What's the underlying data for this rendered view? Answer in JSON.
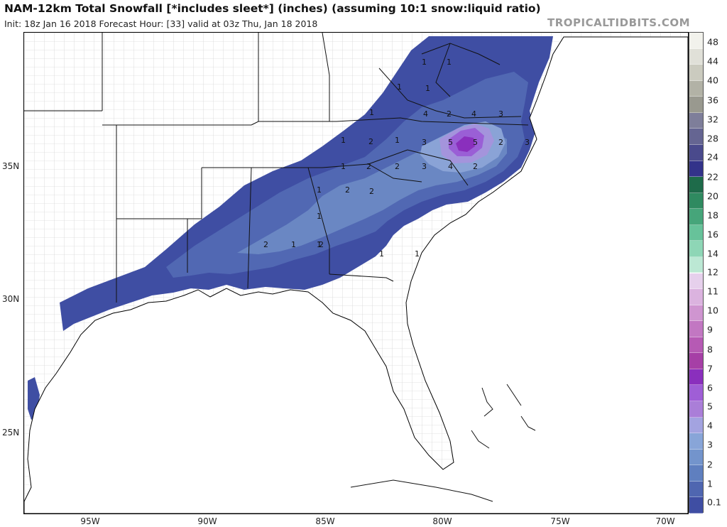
{
  "header": {
    "title": "NAM-12km Total Snowfall [*includes sleet*] (inches) (assuming 10:1 snow:liquid ratio)",
    "init_line": "Init: 18z Jan 16 2018   Forecast Hour: [33]   valid at 03z Thu, Jan 18 2018",
    "source": "TROPICALTIDBITS.COM"
  },
  "map": {
    "lat_labels": [
      "35N",
      "30N",
      "25N"
    ],
    "lon_labels": [
      "95W",
      "90W",
      "85W",
      "80W",
      "75W",
      "70W"
    ],
    "contour_labels": [
      "1",
      "1",
      "1",
      "1",
      "1",
      "2",
      "4",
      "3",
      "4",
      "1",
      "2",
      "1",
      "3",
      "5",
      "5",
      "2",
      "3",
      "1",
      "2",
      "2",
      "3",
      "4",
      "2",
      "2",
      "1",
      "2",
      "1",
      "1",
      "2",
      "1",
      "2",
      "1",
      "1"
    ]
  },
  "colorbar": {
    "labels": [
      "48",
      "44",
      "40",
      "36",
      "32",
      "28",
      "24",
      "22",
      "20",
      "18",
      "16",
      "14",
      "12",
      "11",
      "10",
      "9",
      "8",
      "7",
      "6",
      "5",
      "4",
      "3",
      "2",
      "1",
      "0.1"
    ],
    "colors": [
      "#f2f2ec",
      "#e0e0d8",
      "#cbcbbf",
      "#b2b2a6",
      "#99998f",
      "#7e7e9a",
      "#656592",
      "#4a4a8c",
      "#33338a",
      "#1e6b4a",
      "#2f8a60",
      "#46a57a",
      "#67c29a",
      "#8ed6b6",
      "#bce8d4",
      "#e6d0ec",
      "#dbb3df",
      "#cf95d0",
      "#c277c2",
      "#b65ab4",
      "#a63fa6",
      "#8a2fbd",
      "#9f5ed6",
      "#aa7ed8",
      "#a3a3e0",
      "#88a5d8",
      "#7394cc",
      "#5f7fbf",
      "#4f66b0",
      "#3f4ea3"
    ]
  },
  "legend_colors": {
    "band_0_1": "#3f4ea3",
    "band_1": "#5168b3",
    "band_2": "#6a87c3",
    "band_3": "#8aa3d6",
    "band_4": "#a494dc",
    "band_5": "#9a5fd6",
    "band_6": "#8a2fbd"
  }
}
